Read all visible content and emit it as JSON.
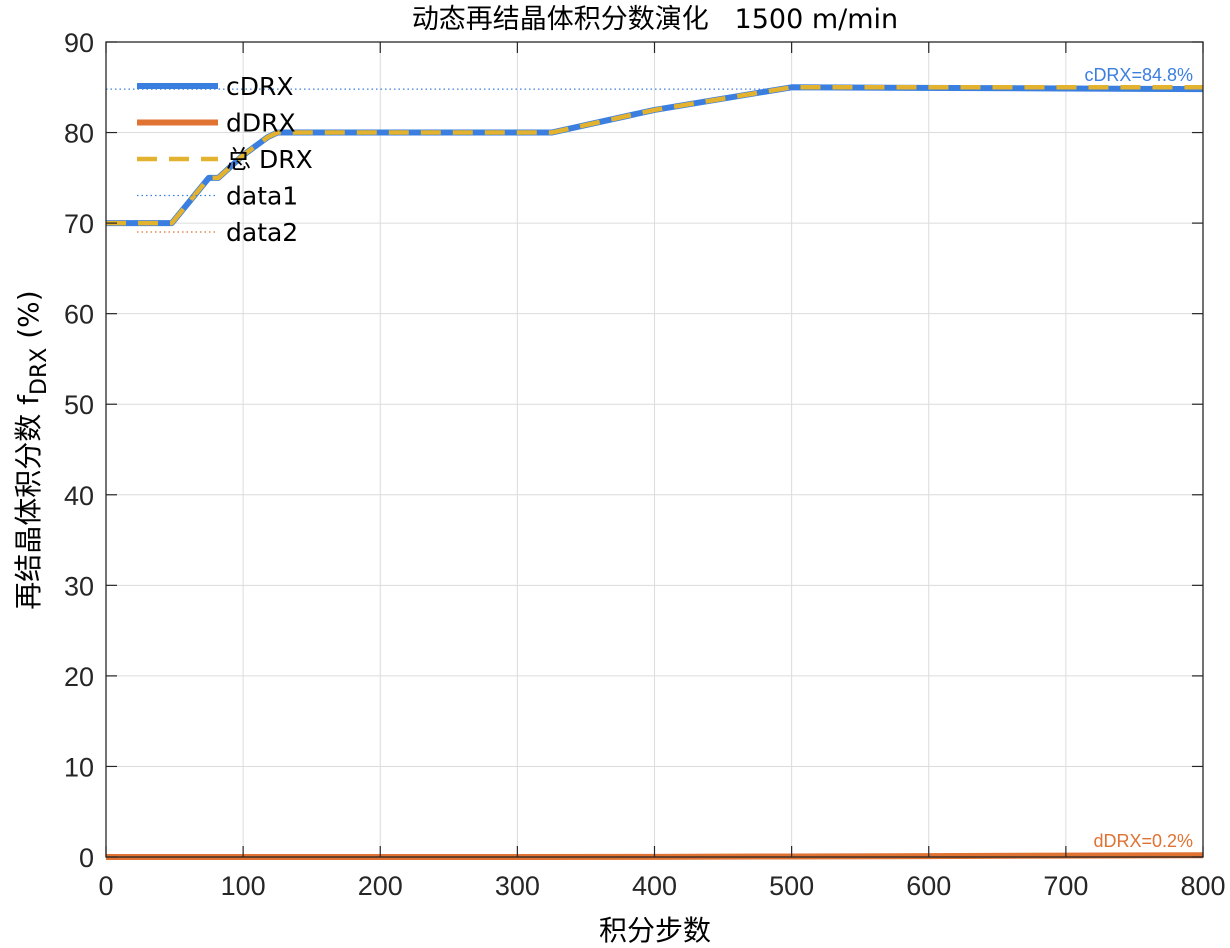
{
  "chart_data": {
    "type": "line",
    "title": "动态再结晶体积分数演化   1500 m/min",
    "xlabel": "积分步数",
    "ylabel_main": "再结晶体积分数 f",
    "ylabel_sub": "DRX",
    "ylabel_suffix": " (%)",
    "xlim": [
      0,
      800
    ],
    "ylim": [
      0,
      90
    ],
    "xticks": [
      0,
      100,
      200,
      300,
      400,
      500,
      600,
      700,
      800
    ],
    "yticks": [
      0,
      10,
      20,
      30,
      40,
      50,
      60,
      70,
      80,
      90
    ],
    "grid": true,
    "legend_position": "top-left",
    "series": [
      {
        "name": "cDRX",
        "color": "#3a7ee0",
        "style": "solid",
        "x": [
          0,
          48,
          75,
          82,
          100,
          118,
          125,
          325,
          400,
          500,
          800
        ],
        "y": [
          70,
          70,
          75,
          75,
          77.5,
          79.5,
          80,
          80,
          82.5,
          85,
          84.8
        ]
      },
      {
        "name": "dDRX",
        "color": "#e07232",
        "style": "solid",
        "x": [
          0,
          100,
          200,
          300,
          400,
          500,
          600,
          700,
          800
        ],
        "y": [
          0,
          0,
          0,
          0,
          0.02,
          0.06,
          0.1,
          0.15,
          0.2
        ]
      },
      {
        "name": "总 DRX",
        "color": "#e3b22e",
        "style": "dashed",
        "x": [
          0,
          48,
          75,
          82,
          100,
          118,
          125,
          325,
          400,
          500,
          800
        ],
        "y": [
          70,
          70,
          75,
          75,
          77.5,
          79.5,
          80,
          80,
          82.5,
          85,
          85
        ]
      },
      {
        "name": "data1",
        "color": "#3a7ee0",
        "style": "dotted",
        "x": [
          0,
          800
        ],
        "y": [
          84.8,
          84.8
        ]
      },
      {
        "name": "data2",
        "color": "#e07232",
        "style": "dotted",
        "x": [
          0,
          800
        ],
        "y": [
          0.2,
          0.2
        ]
      }
    ],
    "annotations": [
      {
        "text": "cDRX=84.8%",
        "color": "#3a7ee0",
        "x": 800,
        "y": 84.8
      },
      {
        "text": "dDRX=0.2%",
        "color": "#e07232",
        "x": 800,
        "y": 0.2
      }
    ]
  }
}
